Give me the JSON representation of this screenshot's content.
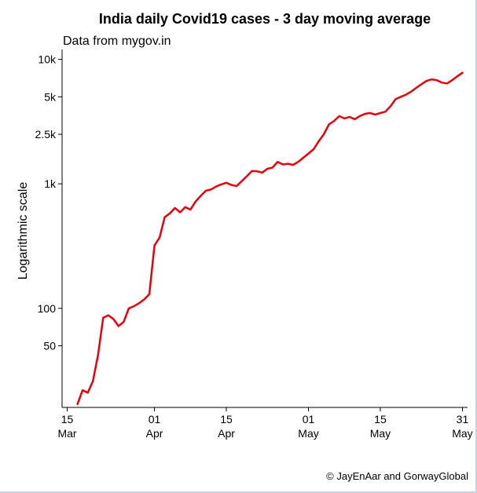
{
  "chart_data": {
    "type": "line",
    "title": "India daily Covid19 cases - 3 day moving average",
    "subtitle": "Data from mygov.in",
    "xlabel": "",
    "ylabel": "Logarithmic scale",
    "caption": "© JayEnAar and GorwayGlobal",
    "y_scale": "log",
    "ylim": [
      16,
      12000
    ],
    "xlim": [
      "2020-03-14",
      "2020-06-01"
    ],
    "grid": false,
    "legend": "none",
    "line_color": "#e8000b",
    "x_ticks": [
      {
        "date": "2020-03-15",
        "day": "15",
        "month": "Mar"
      },
      {
        "date": "2020-04-01",
        "day": "01",
        "month": "Apr"
      },
      {
        "date": "2020-04-15",
        "day": "15",
        "month": "Apr"
      },
      {
        "date": "2020-05-01",
        "day": "01",
        "month": "May"
      },
      {
        "date": "2020-05-15",
        "day": "15",
        "month": "May"
      },
      {
        "date": "2020-05-31",
        "day": "31",
        "month": "May"
      }
    ],
    "y_ticks": [
      {
        "value": 50,
        "label": "50"
      },
      {
        "value": 100,
        "label": "100"
      },
      {
        "value": 1000,
        "label": "1k"
      },
      {
        "value": 2500,
        "label": "2.5k"
      },
      {
        "value": 5000,
        "label": "5k"
      },
      {
        "value": 10000,
        "label": "10k"
      }
    ],
    "series": [
      {
        "x": [
          "2020-03-17",
          "2020-03-18",
          "2020-03-19",
          "2020-03-20",
          "2020-03-21",
          "2020-03-22",
          "2020-03-23",
          "2020-03-24",
          "2020-03-25",
          "2020-03-26",
          "2020-03-27",
          "2020-03-28",
          "2020-03-29",
          "2020-03-30",
          "2020-03-31",
          "2020-04-01",
          "2020-04-02",
          "2020-04-03",
          "2020-04-04",
          "2020-04-05",
          "2020-04-06",
          "2020-04-07",
          "2020-04-08",
          "2020-04-09",
          "2020-04-10",
          "2020-04-11",
          "2020-04-12",
          "2020-04-13",
          "2020-04-14",
          "2020-04-15",
          "2020-04-16",
          "2020-04-17",
          "2020-04-18",
          "2020-04-19",
          "2020-04-20",
          "2020-04-21",
          "2020-04-22",
          "2020-04-23",
          "2020-04-24",
          "2020-04-25",
          "2020-04-26",
          "2020-04-27",
          "2020-04-28",
          "2020-04-29",
          "2020-04-30",
          "2020-05-01",
          "2020-05-02",
          "2020-05-03",
          "2020-05-04",
          "2020-05-05",
          "2020-05-06",
          "2020-05-07",
          "2020-05-08",
          "2020-05-09",
          "2020-05-10",
          "2020-05-11",
          "2020-05-12",
          "2020-05-13",
          "2020-05-14",
          "2020-05-15",
          "2020-05-16",
          "2020-05-17",
          "2020-05-18",
          "2020-05-19",
          "2020-05-20",
          "2020-05-21",
          "2020-05-22",
          "2020-05-23",
          "2020-05-24",
          "2020-05-25",
          "2020-05-26",
          "2020-05-27",
          "2020-05-28",
          "2020-05-29",
          "2020-05-30",
          "2020-05-31"
        ],
        "values": [
          17,
          22,
          21,
          26,
          42,
          84,
          88,
          82,
          72,
          78,
          100,
          104,
          110,
          118,
          130,
          320,
          370,
          540,
          580,
          640,
          590,
          650,
          620,
          720,
          800,
          880,
          900,
          950,
          990,
          1020,
          980,
          960,
          1050,
          1150,
          1270,
          1260,
          1230,
          1320,
          1350,
          1500,
          1430,
          1450,
          1420,
          1500,
          1620,
          1750,
          1900,
          2200,
          2500,
          3000,
          3200,
          3500,
          3350,
          3450,
          3300,
          3500,
          3650,
          3700,
          3600,
          3700,
          3800,
          4200,
          4800,
          5000,
          5200,
          5500,
          5900,
          6300,
          6700,
          6900,
          6800,
          6500,
          6400,
          6800,
          7300,
          7800
        ]
      }
    ]
  }
}
